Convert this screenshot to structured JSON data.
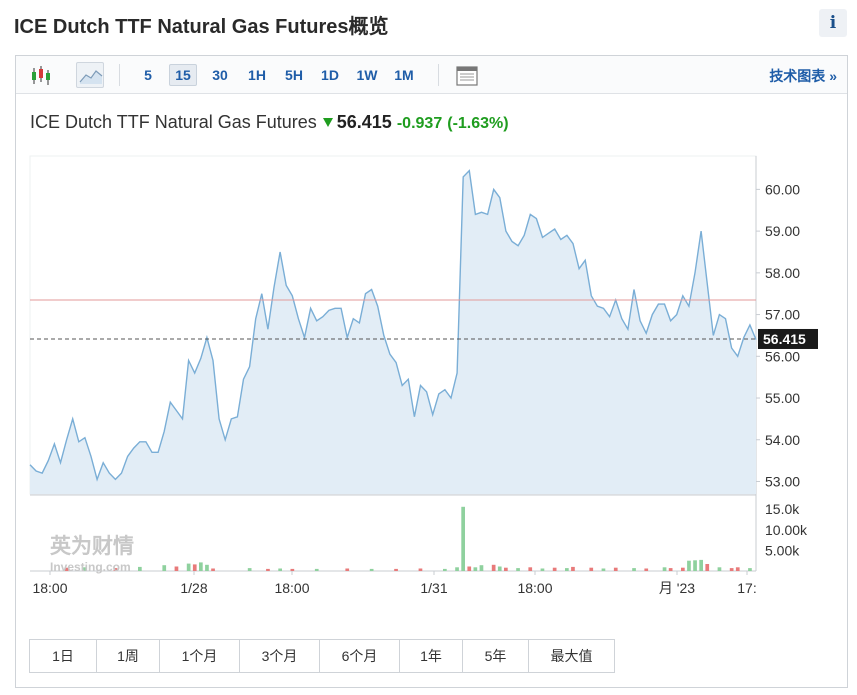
{
  "title": "ICE Dutch TTF Natural Gas Futures概览",
  "info_label": "i",
  "toolbar": {
    "intervals": [
      "5",
      "15",
      "30",
      "1H",
      "5H",
      "1D",
      "1W",
      "1M"
    ],
    "active_interval": "15",
    "tech_link": "技术图表 »",
    "icons": [
      "candlestick-chart-icon",
      "area-chart-icon",
      "table-view-icon"
    ]
  },
  "quote": {
    "name": "ICE Dutch TTF Natural Gas Futures",
    "last": "56.415",
    "change": "-0.937",
    "change_pct": "(-1.63%)",
    "direction": "down"
  },
  "watermark": {
    "line1": "英为财情",
    "line2": "Investing.com"
  },
  "chart_data": [
    {
      "type": "area",
      "ylim": [
        52.7,
        60.8
      ],
      "y_ticks": [
        "53.00",
        "54.00",
        "55.00",
        "56.00",
        "57.00",
        "58.00",
        "59.00",
        "60.00"
      ],
      "x_ticks": [
        "18:00",
        "1/28",
        "18:00",
        "1/31",
        "18:00",
        "月 '23",
        "17:"
      ],
      "current_value": 56.415,
      "current_label": "56.415",
      "reference_line": 57.35,
      "colors": {
        "line": "#7aaed6",
        "fill": "#e2edf6",
        "ref": "#e39a9a",
        "current": "#555555"
      },
      "values": [
        53.4,
        53.25,
        53.2,
        53.5,
        53.9,
        53.45,
        54.0,
        54.5,
        53.95,
        54.05,
        53.6,
        53.05,
        53.45,
        53.2,
        53.05,
        53.2,
        53.6,
        53.8,
        53.95,
        53.95,
        53.7,
        53.7,
        54.2,
        54.9,
        54.7,
        54.5,
        55.9,
        55.6,
        55.95,
        56.45,
        55.9,
        54.5,
        54.0,
        54.5,
        54.55,
        55.45,
        55.75,
        56.9,
        57.5,
        56.65,
        57.65,
        58.5,
        57.7,
        57.45,
        56.9,
        56.45,
        57.15,
        56.85,
        56.95,
        57.1,
        57.15,
        57.15,
        56.45,
        56.9,
        56.8,
        57.5,
        57.6,
        57.2,
        56.5,
        56.05,
        55.85,
        55.3,
        55.45,
        54.55,
        55.3,
        55.15,
        54.6,
        55.1,
        55.2,
        55.0,
        55.6,
        60.3,
        60.45,
        59.4,
        59.45,
        59.4,
        60.0,
        59.8,
        59.0,
        58.75,
        58.65,
        58.9,
        59.4,
        59.3,
        58.85,
        58.95,
        59.05,
        58.8,
        58.9,
        58.7,
        58.1,
        58.3,
        57.45,
        57.2,
        57.15,
        56.95,
        57.35,
        56.9,
        56.65,
        57.6,
        56.85,
        56.55,
        57.0,
        57.25,
        57.25,
        56.85,
        57.0,
        57.45,
        57.2,
        58.0,
        59.0,
        57.75,
        56.5,
        57.0,
        56.9,
        56.2,
        56.0,
        56.45,
        56.75,
        56.4
      ]
    },
    {
      "type": "bar",
      "ylim": [
        0,
        17000
      ],
      "y_ticks": [
        "5.00k",
        "10.00k",
        "15.0k"
      ],
      "colors": {
        "up": "#8fd19e",
        "down": "#e87a7a"
      },
      "volume_bars": [
        {
          "index": 6,
          "value": 800,
          "dir": "down"
        },
        {
          "index": 9,
          "value": 900,
          "dir": "up"
        },
        {
          "index": 14,
          "value": 700,
          "dir": "down"
        },
        {
          "index": 18,
          "value": 1000,
          "dir": "up"
        },
        {
          "index": 22,
          "value": 1400,
          "dir": "up"
        },
        {
          "index": 24,
          "value": 1100,
          "dir": "down"
        },
        {
          "index": 26,
          "value": 1800,
          "dir": "up"
        },
        {
          "index": 27,
          "value": 1600,
          "dir": "down"
        },
        {
          "index": 28,
          "value": 2100,
          "dir": "up"
        },
        {
          "index": 29,
          "value": 1500,
          "dir": "up"
        },
        {
          "index": 30,
          "value": 600,
          "dir": "down"
        },
        {
          "index": 36,
          "value": 700,
          "dir": "up"
        },
        {
          "index": 39,
          "value": 500,
          "dir": "down"
        },
        {
          "index": 41,
          "value": 600,
          "dir": "up"
        },
        {
          "index": 43,
          "value": 500,
          "dir": "down"
        },
        {
          "index": 47,
          "value": 500,
          "dir": "up"
        },
        {
          "index": 52,
          "value": 600,
          "dir": "down"
        },
        {
          "index": 56,
          "value": 500,
          "dir": "up"
        },
        {
          "index": 60,
          "value": 500,
          "dir": "down"
        },
        {
          "index": 64,
          "value": 600,
          "dir": "down"
        },
        {
          "index": 68,
          "value": 500,
          "dir": "up"
        },
        {
          "index": 70,
          "value": 900,
          "dir": "up"
        },
        {
          "index": 71,
          "value": 15600,
          "dir": "up"
        },
        {
          "index": 72,
          "value": 1100,
          "dir": "down"
        },
        {
          "index": 73,
          "value": 900,
          "dir": "up"
        },
        {
          "index": 74,
          "value": 1400,
          "dir": "up"
        },
        {
          "index": 76,
          "value": 1500,
          "dir": "down"
        },
        {
          "index": 77,
          "value": 1100,
          "dir": "up"
        },
        {
          "index": 78,
          "value": 800,
          "dir": "down"
        },
        {
          "index": 80,
          "value": 700,
          "dir": "up"
        },
        {
          "index": 82,
          "value": 900,
          "dir": "down"
        },
        {
          "index": 84,
          "value": 600,
          "dir": "up"
        },
        {
          "index": 86,
          "value": 800,
          "dir": "down"
        },
        {
          "index": 88,
          "value": 700,
          "dir": "up"
        },
        {
          "index": 89,
          "value": 1000,
          "dir": "down"
        },
        {
          "index": 92,
          "value": 800,
          "dir": "down"
        },
        {
          "index": 94,
          "value": 600,
          "dir": "up"
        },
        {
          "index": 96,
          "value": 800,
          "dir": "down"
        },
        {
          "index": 99,
          "value": 700,
          "dir": "up"
        },
        {
          "index": 101,
          "value": 600,
          "dir": "down"
        },
        {
          "index": 104,
          "value": 900,
          "dir": "up"
        },
        {
          "index": 105,
          "value": 700,
          "dir": "down"
        },
        {
          "index": 107,
          "value": 800,
          "dir": "down"
        },
        {
          "index": 108,
          "value": 2500,
          "dir": "up"
        },
        {
          "index": 109,
          "value": 2600,
          "dir": "up"
        },
        {
          "index": 110,
          "value": 2700,
          "dir": "up"
        },
        {
          "index": 111,
          "value": 1700,
          "dir": "down"
        },
        {
          "index": 113,
          "value": 900,
          "dir": "up"
        },
        {
          "index": 115,
          "value": 700,
          "dir": "down"
        },
        {
          "index": 116,
          "value": 900,
          "dir": "down"
        },
        {
          "index": 118,
          "value": 700,
          "dir": "up"
        }
      ]
    }
  ],
  "time_ranges": [
    "1日",
    "1周",
    "1个月",
    "3个月",
    "6个月",
    "1年",
    "5年",
    "最大值"
  ]
}
